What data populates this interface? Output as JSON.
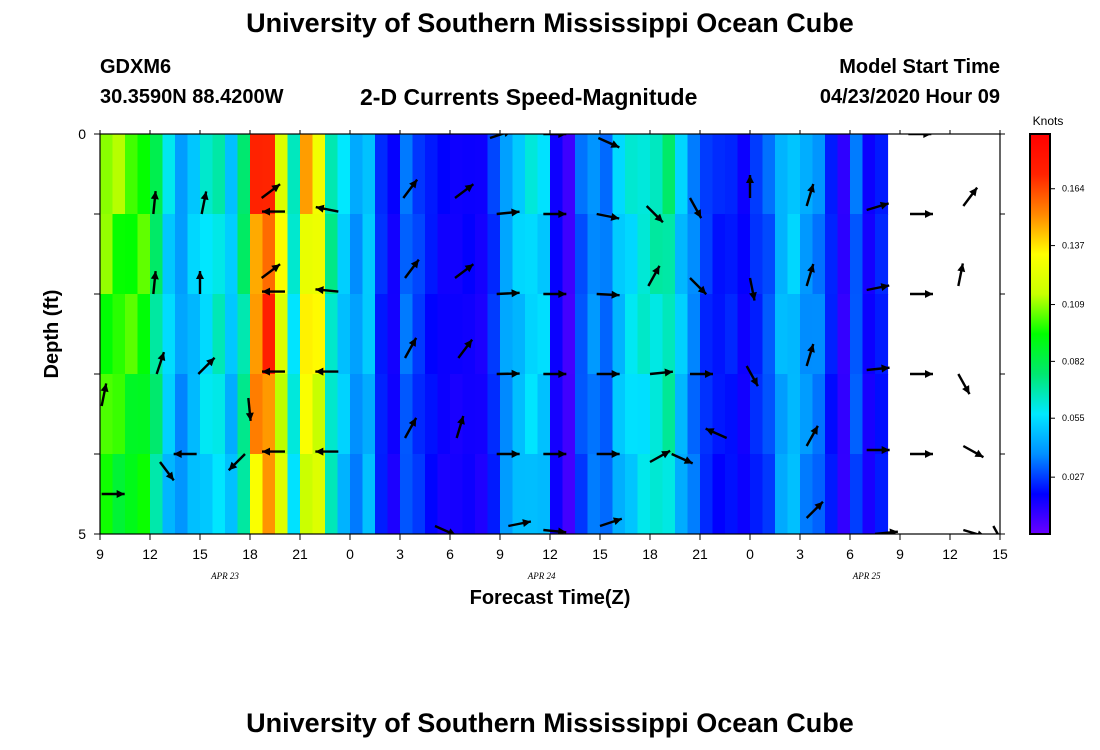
{
  "page": {
    "title": "University of Southern Mississippi Ocean Cube",
    "footer_title": "University of Southern Mississippi Ocean Cube",
    "station_id": "GDXM6",
    "coordinates": "30.3590N 88.4200W",
    "subtitle": "2-D Currents Speed-Magnitude",
    "model_start_label": "Model Start Time",
    "model_start_value": "04/23/2020 Hour 09"
  },
  "chart_data": {
    "type": "heatmap",
    "title": "2-D Currents Speed-Magnitude",
    "xlabel": "Forecast Time(Z)",
    "ylabel": "Depth (ft)",
    "x_hours": [
      9,
      9.75,
      10.5,
      11.25,
      12,
      12.75,
      13.5,
      14.25,
      15,
      15.75,
      16.5,
      17.25,
      18,
      18.75,
      19.5,
      20.25,
      21,
      21.75,
      22.5,
      23.25,
      24,
      24.75,
      25.5,
      26.25,
      27,
      27.75,
      28.5,
      29.25,
      30,
      30.75,
      31.5,
      32.25,
      33,
      33.75,
      34.5,
      35.25,
      36,
      36.75,
      37.5,
      38.25,
      39,
      39.75,
      40.5,
      41.25,
      42,
      42.75,
      43.5,
      44.25,
      45,
      45.75,
      46.5,
      47.25,
      48,
      48.75,
      49.5,
      50.25,
      51,
      51.75,
      52.5,
      53.25,
      54,
      54.75,
      55.5,
      56.25,
      57,
      57.75,
      58.5,
      59.25,
      60,
      60.75,
      61.5,
      62.25,
      63
    ],
    "x_range": [
      9,
      63
    ],
    "x_ticks": [
      {
        "value": 9,
        "label": "9"
      },
      {
        "value": 12,
        "label": "12"
      },
      {
        "value": 15,
        "label": "15"
      },
      {
        "value": 18,
        "label": "18"
      },
      {
        "value": 21,
        "label": "21"
      },
      {
        "value": 24,
        "label": "0"
      },
      {
        "value": 27,
        "label": "3"
      },
      {
        "value": 30,
        "label": "6"
      },
      {
        "value": 33,
        "label": "9"
      },
      {
        "value": 36,
        "label": "12"
      },
      {
        "value": 39,
        "label": "15"
      },
      {
        "value": 42,
        "label": "18"
      },
      {
        "value": 45,
        "label": "21"
      },
      {
        "value": 48,
        "label": "0"
      },
      {
        "value": 51,
        "label": "3"
      },
      {
        "value": 54,
        "label": "6"
      },
      {
        "value": 57,
        "label": "9"
      },
      {
        "value": 60,
        "label": "12"
      },
      {
        "value": 63,
        "label": "15"
      }
    ],
    "date_labels": [
      {
        "value": 16.5,
        "label": "APR 23"
      },
      {
        "value": 35.5,
        "label": "APR 24"
      },
      {
        "value": 55,
        "label": "APR 25"
      }
    ],
    "y_range": [
      0,
      5
    ],
    "y_ticks": [
      {
        "value": 0,
        "label": "0"
      },
      {
        "value": 1,
        "label": ""
      },
      {
        "value": 2,
        "label": ""
      },
      {
        "value": 3,
        "label": ""
      },
      {
        "value": 4,
        "label": ""
      },
      {
        "value": 5,
        "label": "5"
      }
    ],
    "depth_layers": [
      0.5,
      1.5,
      2.5,
      3.5,
      4.5
    ],
    "speed_profile": [
      0.108,
      0.105,
      0.103,
      0.102,
      0.079,
      0.056,
      0.043,
      0.052,
      0.06,
      0.067,
      0.052,
      0.077,
      0.16,
      0.172,
      0.13,
      0.064,
      0.14,
      0.134,
      0.071,
      0.054,
      0.042,
      0.052,
      0.025,
      0.017,
      0.035,
      0.028,
      0.022,
      0.018,
      0.017,
      0.018,
      0.016,
      0.027,
      0.044,
      0.052,
      0.058,
      0.055,
      0.018,
      0.008,
      0.032,
      0.04,
      0.035,
      0.052,
      0.06,
      0.065,
      0.068,
      0.073,
      0.052,
      0.038,
      0.027,
      0.023,
      0.024,
      0.018,
      0.026,
      0.032,
      0.048,
      0.052,
      0.042,
      0.038,
      0.024,
      0.011,
      0.033,
      0.017,
      0.024
    ],
    "colorbar": {
      "label": "Knots",
      "range": [
        0,
        0.19
      ],
      "ticks": [
        0.027,
        0.055,
        0.082,
        0.109,
        0.137,
        0.164
      ],
      "tick_labels": [
        "0.027",
        "0.055",
        "0.082",
        "0.109",
        "0.137",
        "0.164"
      ],
      "stops": [
        "#6a00ff",
        "#0000ff",
        "#0090ff",
        "#00e8ff",
        "#00e870",
        "#00ff00",
        "#c8ff00",
        "#ffff00",
        "#ff8800",
        "#ff2200",
        "#ff0000"
      ]
    },
    "vectors": [
      {
        "t": 9.1,
        "d": 3.4,
        "u": 0.2,
        "v": 1.0
      },
      {
        "t": 9.1,
        "d": 4.5,
        "u": 1.0,
        "v": 0.0
      },
      {
        "t": 12.2,
        "d": 1.0,
        "u": 0.1,
        "v": 1.0
      },
      {
        "t": 12.2,
        "d": 2.0,
        "u": 0.1,
        "v": 1.0
      },
      {
        "t": 12.4,
        "d": 3.0,
        "u": 0.3,
        "v": 0.9
      },
      {
        "t": 12.6,
        "d": 4.1,
        "u": 0.6,
        "v": -0.8
      },
      {
        "t": 15.1,
        "d": 1.0,
        "u": 0.2,
        "v": 1.0
      },
      {
        "t": 15.0,
        "d": 2.0,
        "u": 0.0,
        "v": 1.0
      },
      {
        "t": 14.9,
        "d": 3.0,
        "u": 0.7,
        "v": 0.7
      },
      {
        "t": 14.8,
        "d": 4.0,
        "u": -1.0,
        "v": 0.0
      },
      {
        "t": 17.9,
        "d": 3.3,
        "u": 0.1,
        "v": -1.0
      },
      {
        "t": 17.7,
        "d": 4.0,
        "u": -0.7,
        "v": -0.7
      },
      {
        "t": 18.7,
        "d": 0.8,
        "u": 0.8,
        "v": 0.6
      },
      {
        "t": 18.7,
        "d": 1.8,
        "u": 0.8,
        "v": 0.6
      },
      {
        "t": 20.1,
        "d": 0.97,
        "u": -1.0,
        "v": 0.0
      },
      {
        "t": 20.1,
        "d": 1.97,
        "u": -1.0,
        "v": 0.0
      },
      {
        "t": 20.1,
        "d": 2.97,
        "u": -1.0,
        "v": 0.0
      },
      {
        "t": 20.1,
        "d": 3.97,
        "u": -1.0,
        "v": 0.0
      },
      {
        "t": 23.3,
        "d": 0.97,
        "u": -1.0,
        "v": 0.2
      },
      {
        "t": 23.3,
        "d": 1.97,
        "u": -1.0,
        "v": 0.1
      },
      {
        "t": 23.3,
        "d": 2.97,
        "u": -1.0,
        "v": 0.0
      },
      {
        "t": 23.3,
        "d": 3.97,
        "u": -1.0,
        "v": 0.0
      },
      {
        "t": 27.2,
        "d": 0.8,
        "u": 0.6,
        "v": 0.8
      },
      {
        "t": 27.3,
        "d": 1.8,
        "u": 0.6,
        "v": 0.8
      },
      {
        "t": 27.3,
        "d": 2.8,
        "u": 0.5,
        "v": 0.9
      },
      {
        "t": 27.3,
        "d": 3.8,
        "u": 0.5,
        "v": 0.9
      },
      {
        "t": 30.3,
        "d": 0.8,
        "u": 0.8,
        "v": 0.6
      },
      {
        "t": 30.3,
        "d": 1.8,
        "u": 0.8,
        "v": 0.6
      },
      {
        "t": 30.5,
        "d": 2.8,
        "u": 0.6,
        "v": 0.8
      },
      {
        "t": 30.4,
        "d": 3.8,
        "u": 0.3,
        "v": 1.0
      },
      {
        "t": 29.1,
        "d": 4.9,
        "u": 0.9,
        "v": -0.4
      },
      {
        "t": 32.4,
        "d": 0.05,
        "u": 0.9,
        "v": 0.3
      },
      {
        "t": 32.8,
        "d": 1.0,
        "u": 1.0,
        "v": 0.1
      },
      {
        "t": 32.8,
        "d": 2.0,
        "u": 1.0,
        "v": 0.05
      },
      {
        "t": 32.8,
        "d": 3.0,
        "u": 1.0,
        "v": 0.02
      },
      {
        "t": 32.8,
        "d": 4.0,
        "u": 1.0,
        "v": 0.0
      },
      {
        "t": 33.5,
        "d": 4.9,
        "u": 1.0,
        "v": 0.2
      },
      {
        "t": 35.6,
        "d": 0.0,
        "u": 1.0,
        "v": 0.0
      },
      {
        "t": 35.6,
        "d": 1.0,
        "u": 1.0,
        "v": 0.0
      },
      {
        "t": 35.6,
        "d": 2.0,
        "u": 1.0,
        "v": 0.0
      },
      {
        "t": 35.6,
        "d": 3.0,
        "u": 1.0,
        "v": 0.0
      },
      {
        "t": 35.6,
        "d": 4.0,
        "u": 1.0,
        "v": 0.0
      },
      {
        "t": 35.6,
        "d": 4.95,
        "u": 1.0,
        "v": -0.1
      },
      {
        "t": 38.9,
        "d": 0.05,
        "u": 0.9,
        "v": -0.4
      },
      {
        "t": 38.8,
        "d": 1.0,
        "u": 1.0,
        "v": -0.2
      },
      {
        "t": 38.8,
        "d": 2.0,
        "u": 1.0,
        "v": -0.05
      },
      {
        "t": 38.8,
        "d": 3.0,
        "u": 1.0,
        "v": 0.0
      },
      {
        "t": 38.8,
        "d": 4.0,
        "u": 1.0,
        "v": 0.0
      },
      {
        "t": 39.0,
        "d": 4.9,
        "u": 0.9,
        "v": 0.3
      },
      {
        "t": 41.8,
        "d": 0.9,
        "u": 0.7,
        "v": -0.7
      },
      {
        "t": 41.9,
        "d": 1.9,
        "u": 0.5,
        "v": 0.9
      },
      {
        "t": 42.0,
        "d": 3.0,
        "u": 1.0,
        "v": 0.1
      },
      {
        "t": 42.0,
        "d": 4.1,
        "u": 0.9,
        "v": 0.5
      },
      {
        "t": 44.4,
        "d": 0.8,
        "u": 0.5,
        "v": -0.9
      },
      {
        "t": 44.4,
        "d": 1.8,
        "u": 0.7,
        "v": -0.7
      },
      {
        "t": 44.4,
        "d": 3.0,
        "u": 1.0,
        "v": 0.0
      },
      {
        "t": 43.3,
        "d": 4.0,
        "u": 0.9,
        "v": -0.4
      },
      {
        "t": 48.0,
        "d": 0.8,
        "u": 0.0,
        "v": 1.0
      },
      {
        "t": 48.0,
        "d": 1.8,
        "u": 0.2,
        "v": -1.0
      },
      {
        "t": 47.8,
        "d": 2.9,
        "u": 0.5,
        "v": -0.9
      },
      {
        "t": 46.6,
        "d": 3.8,
        "u": -0.9,
        "v": 0.4
      },
      {
        "t": 51.4,
        "d": 0.9,
        "u": 0.3,
        "v": 1.0
      },
      {
        "t": 51.4,
        "d": 1.9,
        "u": 0.3,
        "v": 1.0
      },
      {
        "t": 51.4,
        "d": 2.9,
        "u": 0.3,
        "v": 1.0
      },
      {
        "t": 51.4,
        "d": 3.9,
        "u": 0.5,
        "v": 0.9
      },
      {
        "t": 51.4,
        "d": 4.8,
        "u": 0.7,
        "v": 0.7
      },
      {
        "t": 55.0,
        "d": 0.95,
        "u": 1.0,
        "v": 0.3
      },
      {
        "t": 55.0,
        "d": 1.95,
        "u": 1.0,
        "v": 0.2
      },
      {
        "t": 55.0,
        "d": 2.95,
        "u": 1.0,
        "v": 0.1
      },
      {
        "t": 55.0,
        "d": 3.95,
        "u": 1.0,
        "v": 0.0
      },
      {
        "t": 55.5,
        "d": 5.0,
        "u": 1.0,
        "v": 0.1
      },
      {
        "t": 57.5,
        "d": 0.0,
        "u": 1.0,
        "v": 0.0
      },
      {
        "t": 57.6,
        "d": 1.0,
        "u": 1.0,
        "v": 0.0
      },
      {
        "t": 57.6,
        "d": 2.0,
        "u": 1.0,
        "v": 0.0
      },
      {
        "t": 57.6,
        "d": 3.0,
        "u": 1.0,
        "v": 0.0
      },
      {
        "t": 57.6,
        "d": 4.0,
        "u": 1.0,
        "v": 0.0
      },
      {
        "t": 60.8,
        "d": 4.95,
        "u": 1.0,
        "v": -0.3
      },
      {
        "t": 60.8,
        "d": 0.9,
        "u": 0.6,
        "v": 0.8
      },
      {
        "t": 60.5,
        "d": 1.9,
        "u": 0.2,
        "v": 1.0
      },
      {
        "t": 60.5,
        "d": 3.0,
        "u": 0.5,
        "v": -0.9
      },
      {
        "t": 60.8,
        "d": 3.9,
        "u": 0.9,
        "v": -0.5
      },
      {
        "t": 62.6,
        "d": 4.9,
        "u": 0.5,
        "v": -0.9
      }
    ]
  }
}
